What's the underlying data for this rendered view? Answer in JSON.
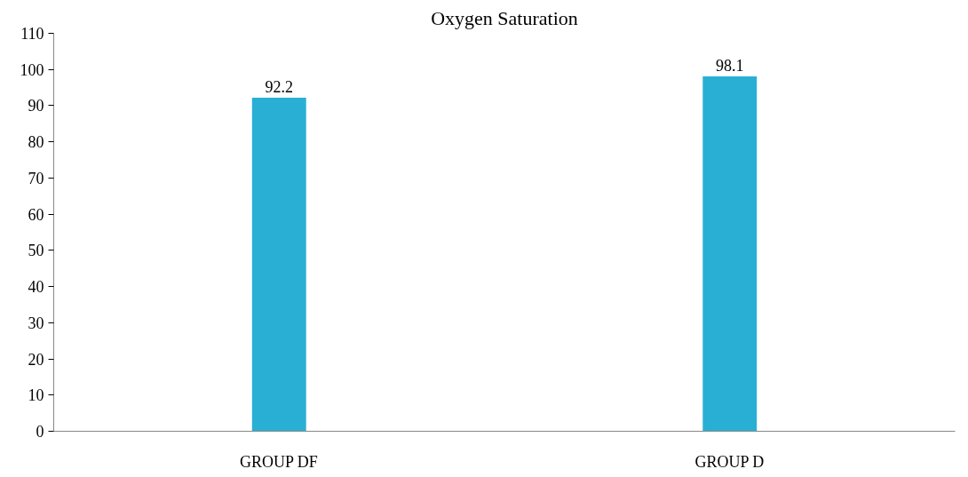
{
  "chart_data": {
    "type": "bar",
    "title": "Oxygen Saturation",
    "categories": [
      "GROUP DF",
      "GROUP D"
    ],
    "values": [
      92.2,
      98.1
    ],
    "color": "#29afd4",
    "ylim": [
      0,
      110
    ],
    "yticks": [
      0,
      10,
      20,
      30,
      40,
      50,
      60,
      70,
      80,
      90,
      100,
      110
    ],
    "data_labels": true,
    "grid": false
  }
}
